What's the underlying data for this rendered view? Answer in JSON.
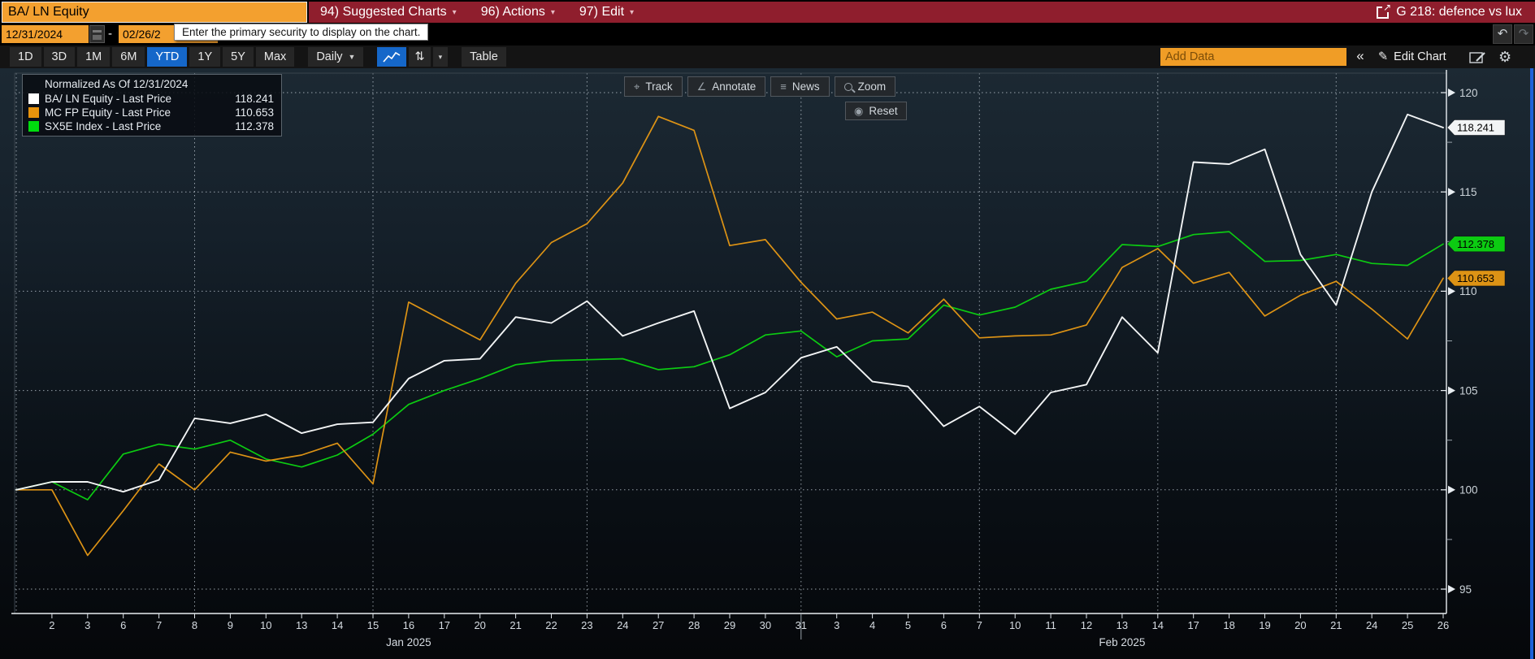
{
  "topbar": {
    "security_input": "BA/ LN Equity",
    "menu_items": [
      {
        "label": "94) Suggested Charts"
      },
      {
        "label": "96) Actions"
      },
      {
        "label": "97) Edit"
      }
    ],
    "workspace_label": "G 218: defence vs lux"
  },
  "daterow": {
    "start_date": "12/31/2024",
    "end_date": "02/26/2",
    "separator": "-",
    "tooltip": "Enter the primary security to display on the chart."
  },
  "toolbar": {
    "ranges": [
      "1D",
      "3D",
      "1M",
      "6M",
      "YTD",
      "1Y",
      "5Y",
      "Max"
    ],
    "active_range": "YTD",
    "period": "Daily",
    "table_label": "Table",
    "add_data_placeholder": "Add Data",
    "edit_chart_label": "Edit Chart"
  },
  "icons": {
    "caret_down": "▾",
    "period_caret": "▼",
    "sort": "⇅",
    "undo": "↶",
    "redo": "↷",
    "collapse": "«",
    "pencil": "✎",
    "gear": "⚙",
    "track": "⌖",
    "annotate": "∠",
    "news": "≡",
    "reset": "◉",
    "external_link_arrow": "↗"
  },
  "legend": {
    "title": "Normalized As Of 12/31/2024",
    "series": [
      {
        "name": "BA/ LN Equity - Last Price",
        "value": "118.241",
        "color": "#ffffff"
      },
      {
        "name": "MC FP Equity - Last Price",
        "value": "110.653",
        "color": "#e8930c"
      },
      {
        "name": "SX5E Index - Last Price",
        "value": "112.378",
        "color": "#00dc0e"
      }
    ]
  },
  "overlay": {
    "track": "Track",
    "annotate": "Annotate",
    "news": "News",
    "zoom": "Zoom",
    "reset": "Reset"
  },
  "chart_data": {
    "type": "line",
    "title": "Normalized As Of 12/31/2024",
    "normalize_base": 100,
    "ylim": [
      93.8,
      121
    ],
    "yticks": [
      95,
      100,
      105,
      110,
      115,
      120
    ],
    "y_minor_ticks": [
      97.5,
      102.5,
      107.5,
      112.5,
      117.5
    ],
    "grid": "dotted",
    "legend_position": "top-left",
    "x_dates": [
      "2024-12-31",
      "2025-01-02",
      "2025-01-03",
      "2025-01-06",
      "2025-01-07",
      "2025-01-08",
      "2025-01-09",
      "2025-01-10",
      "2025-01-13",
      "2025-01-14",
      "2025-01-15",
      "2025-01-16",
      "2025-01-17",
      "2025-01-20",
      "2025-01-21",
      "2025-01-22",
      "2025-01-23",
      "2025-01-24",
      "2025-01-27",
      "2025-01-28",
      "2025-01-29",
      "2025-01-30",
      "2025-01-31",
      "2025-02-03",
      "2025-02-04",
      "2025-02-05",
      "2025-02-06",
      "2025-02-07",
      "2025-02-10",
      "2025-02-11",
      "2025-02-12",
      "2025-02-13",
      "2025-02-14",
      "2025-02-17",
      "2025-02-18",
      "2025-02-19",
      "2025-02-20",
      "2025-02-21",
      "2025-02-24",
      "2025-02-25",
      "2025-02-26"
    ],
    "day_labels": [
      "",
      "2",
      "3",
      "6",
      "7",
      "8",
      "9",
      "10",
      "13",
      "14",
      "15",
      "16",
      "17",
      "20",
      "21",
      "22",
      "23",
      "24",
      "27",
      "28",
      "29",
      "30",
      "31",
      "3",
      "4",
      "5",
      "6",
      "7",
      "10",
      "11",
      "12",
      "13",
      "14",
      "17",
      "18",
      "19",
      "20",
      "21",
      "24",
      "25",
      "26"
    ],
    "month_labels": [
      {
        "label": "Jan 2025",
        "index": 11
      },
      {
        "label": "Feb 2025",
        "index": 31
      }
    ],
    "grid_x_indices": [
      0,
      5,
      10,
      16,
      22,
      27,
      32,
      37
    ],
    "month_separator_index": 22,
    "series": [
      {
        "name": "BA/ LN Equity - Last Price",
        "color": "#f2f4f5",
        "last": "118.241",
        "values": [
          100,
          100.4,
          100.4,
          99.9,
          100.5,
          103.6,
          103.35,
          103.8,
          102.85,
          103.3,
          103.4,
          105.6,
          106.5,
          106.6,
          108.7,
          108.4,
          109.5,
          107.75,
          108.4,
          109,
          104.1,
          104.9,
          106.65,
          107.2,
          105.45,
          105.2,
          103.2,
          104.2,
          102.8,
          104.9,
          105.3,
          108.7,
          106.9,
          116.5,
          116.4,
          117.15,
          111.85,
          109.3,
          115,
          118.9,
          118.241
        ]
      },
      {
        "name": "MC FP Equity - Last Price",
        "color": "#dd9315",
        "last": "110.653",
        "values": [
          100,
          100,
          96.7,
          98.95,
          101.3,
          100,
          101.9,
          101.45,
          101.75,
          102.35,
          100.3,
          109.45,
          108.5,
          107.55,
          110.4,
          112.45,
          113.4,
          115.45,
          118.8,
          118.1,
          112.3,
          112.6,
          110.45,
          108.6,
          108.95,
          107.9,
          109.6,
          107.65,
          107.75,
          107.8,
          108.3,
          111.2,
          112.15,
          110.4,
          110.95,
          108.75,
          109.8,
          110.5,
          109.1,
          107.6,
          110.653
        ]
      },
      {
        "name": "SX5E Index - Last Price",
        "color": "#0ccb12",
        "last": "112.378",
        "values": [
          100,
          100.4,
          99.5,
          101.8,
          102.3,
          102.05,
          102.5,
          101.55,
          101.15,
          101.75,
          102.8,
          104.3,
          105,
          105.6,
          106.3,
          106.5,
          106.55,
          106.6,
          106.05,
          106.2,
          106.8,
          107.8,
          108,
          106.7,
          107.5,
          107.6,
          109.3,
          108.8,
          109.2,
          110.1,
          110.5,
          112.35,
          112.25,
          112.85,
          113,
          111.5,
          111.55,
          111.85,
          111.4,
          111.3,
          112.378
        ]
      }
    ]
  }
}
